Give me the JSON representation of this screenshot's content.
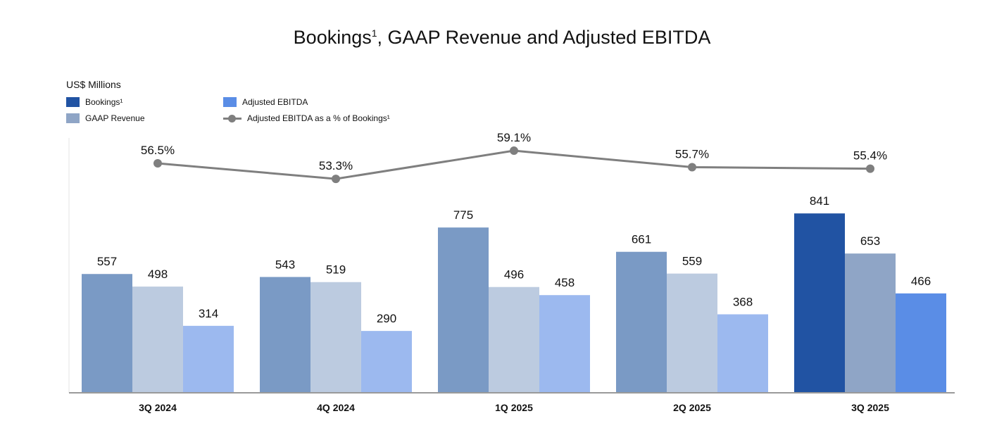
{
  "chart_data": {
    "type": "bar",
    "title": "Bookings¹, GAAP Revenue and Adjusted EBITDA",
    "units": "US$ Millions",
    "categories": [
      "3Q 2024",
      "4Q 2024",
      "1Q 2025",
      "2Q 2025",
      "3Q 2025"
    ],
    "series": [
      {
        "name": "Bookings¹",
        "values": [
          557,
          543,
          775,
          661,
          841
        ],
        "color": "#2153a3",
        "faded_color": "#7a9ac5",
        "labels": [
          "557",
          "543",
          "775",
          "661",
          "841"
        ]
      },
      {
        "name": "GAAP Revenue",
        "values": [
          498,
          519,
          496,
          559,
          653
        ],
        "color": "#8fa5c6",
        "faded_color": "#bccbe0",
        "labels": [
          "498",
          "519",
          "496",
          "559",
          "653"
        ]
      },
      {
        "name": "Adjusted EBITDA",
        "values": [
          314,
          290,
          458,
          368,
          466
        ],
        "color": "#5a8de6",
        "faded_color": "#9cb9ef",
        "labels": [
          "314",
          "290",
          "458",
          "368",
          "466"
        ]
      }
    ],
    "line_series": {
      "name": "Adjusted EBITDA as a % of Bookings¹",
      "values": [
        56.5,
        53.3,
        59.1,
        55.7,
        55.4
      ],
      "labels": [
        "56.5%",
        "53.3%",
        "59.1%",
        "55.7%",
        "55.4%"
      ],
      "color": "#7f7f7f"
    },
    "ylim": [
      0,
      900
    ],
    "grid": false,
    "legend_position": "top-left"
  }
}
